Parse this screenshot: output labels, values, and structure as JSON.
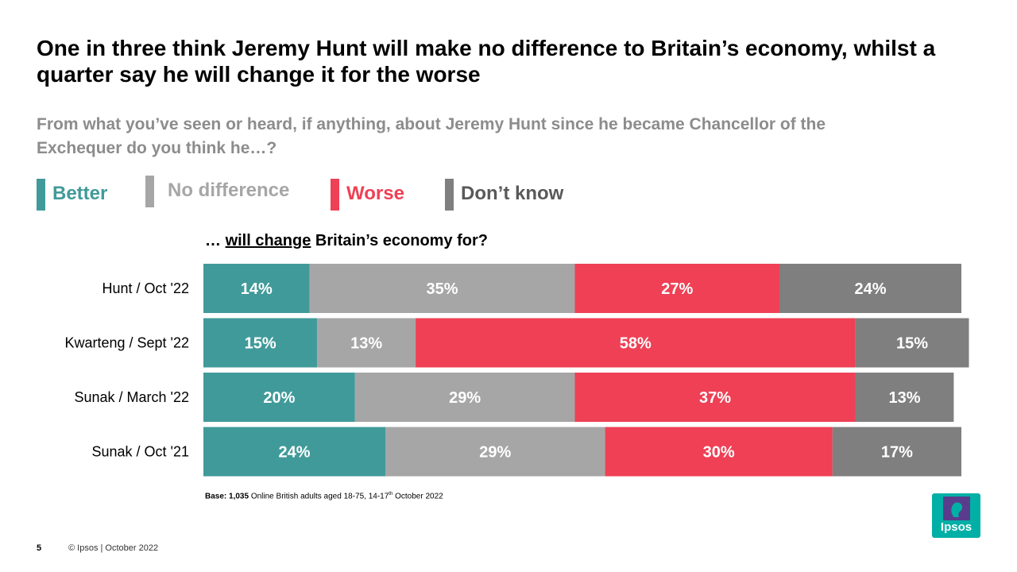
{
  "title": "One in three think Jeremy Hunt will make no difference to Britain’s economy, whilst a quarter say he will change it for the worse",
  "subtitle": "From what you’ve seen or heard, if anything, about Jeremy Hunt since he became Chancellor of the Exchequer do you think he…?",
  "question": {
    "prefix": "… ",
    "underlined": "will change",
    "suffix": " Britain’s economy for?"
  },
  "legend": [
    {
      "label": "Better",
      "color": "#419a9a"
    },
    {
      "label": "No difference",
      "color": "#a6a6a6"
    },
    {
      "label": "Worse",
      "color": "#ef4055"
    },
    {
      "label": "Don’t know",
      "color": "#7f7f7f"
    }
  ],
  "chart_data": {
    "type": "bar",
    "orientation": "horizontal",
    "stacked": true,
    "categories": [
      "Hunt / Oct '22",
      "Kwarteng / Sept '22",
      "Sunak / March '22",
      "Sunak / Oct '21"
    ],
    "series": [
      {
        "name": "Better",
        "color": "#419a9a",
        "values": [
          14,
          15,
          20,
          24
        ],
        "labels": [
          "14%",
          "15%",
          "20%",
          "24%"
        ]
      },
      {
        "name": "No difference",
        "color": "#a6a6a6",
        "values": [
          35,
          13,
          29,
          29
        ],
        "labels": [
          "35%",
          "13%",
          "29%",
          "29%"
        ]
      },
      {
        "name": "Worse",
        "color": "#ef4055",
        "values": [
          27,
          58,
          37,
          30
        ],
        "labels": [
          "27%",
          "58%",
          "37%",
          "30%"
        ]
      },
      {
        "name": "Don’t know",
        "color": "#7f7f7f",
        "values": [
          24,
          15,
          13,
          17
        ],
        "labels": [
          "24%",
          "15%",
          "13%",
          "17%"
        ]
      }
    ],
    "xlim": [
      0,
      100
    ],
    "legend_position": "top"
  },
  "base_note": {
    "label": "Base:",
    "count": "1,035",
    "text_before": " Online British adults aged 18-75, 14-17",
    "superscript": "th",
    "text_after": " October 2022"
  },
  "footer": {
    "page_number": "5",
    "copyright": "© Ipsos | October 2022"
  },
  "logo": {
    "text": "Ipsos",
    "color": "#00b0a6"
  }
}
